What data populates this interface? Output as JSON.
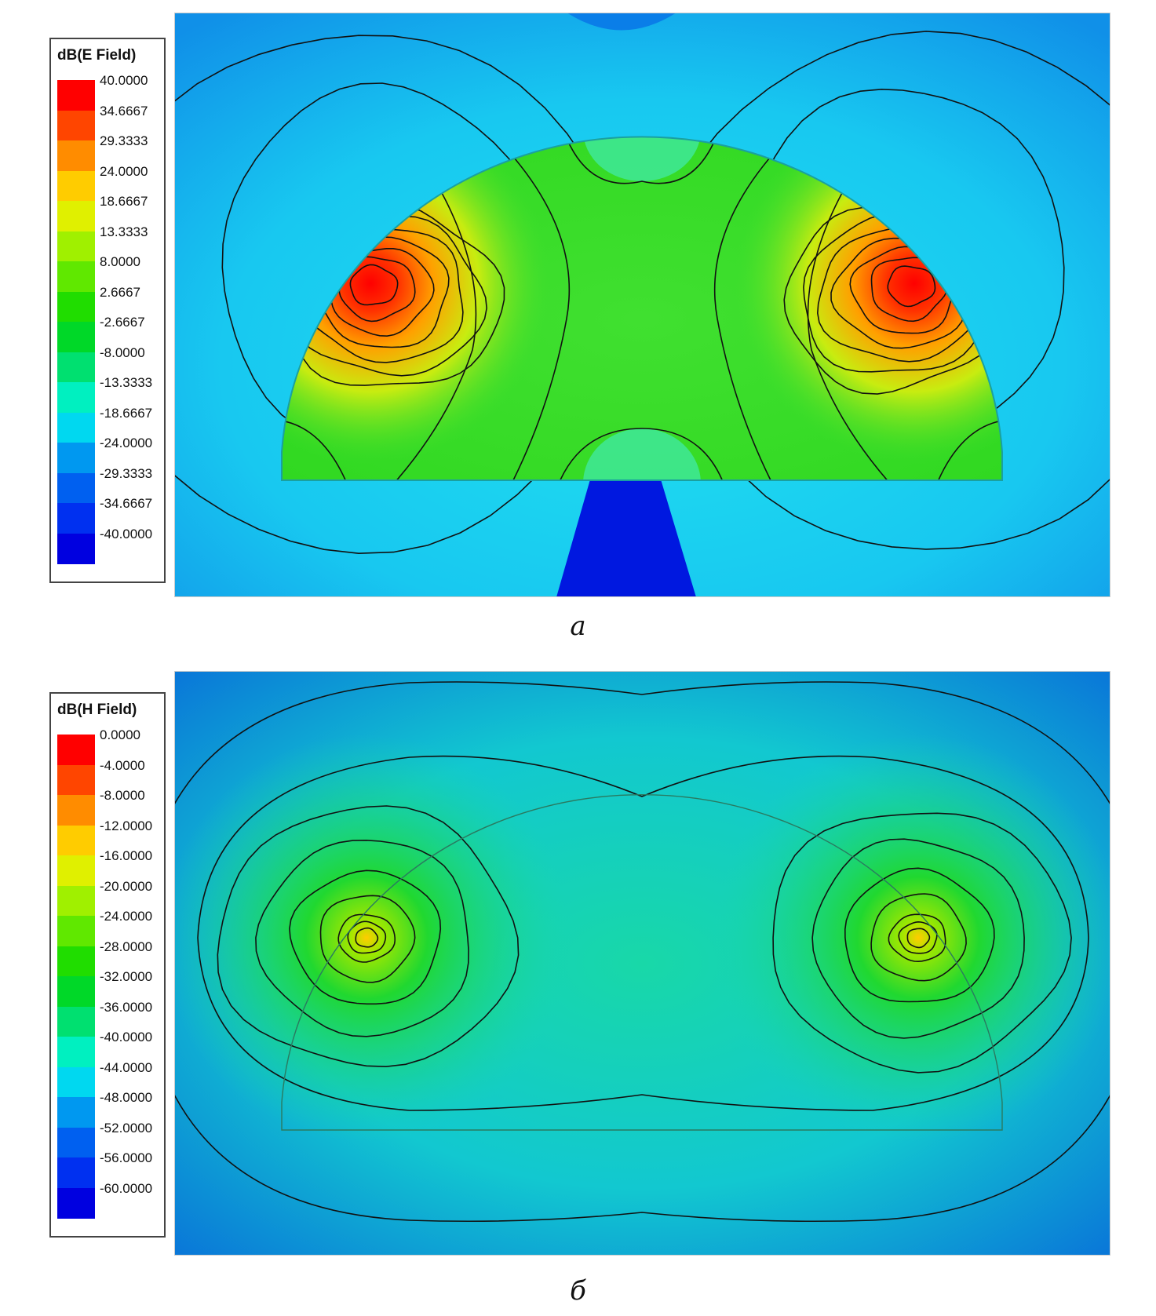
{
  "chart_data": [
    {
      "type": "heatmap",
      "panel_label": "а",
      "colorbar": {
        "title": "dB(E Field)",
        "ticks": [
          "40.0000",
          "34.6667",
          "29.3333",
          "24.0000",
          "18.6667",
          "13.3333",
          "8.0000",
          "2.6667",
          "-2.6667",
          "-8.0000",
          "-13.3333",
          "-18.6667",
          "-24.0000",
          "-29.3333",
          "-34.6667",
          "-40.0000"
        ],
        "range": [
          -40,
          40
        ],
        "colors": [
          "#ff0000",
          "#ff4500",
          "#ff8c00",
          "#ffcc00",
          "#e0f000",
          "#a0f000",
          "#60e800",
          "#20dd00",
          "#00d828",
          "#00e070",
          "#00f0c0",
          "#00d8f0",
          "#0098f0",
          "#0060f0",
          "#0030f0",
          "#0000e0"
        ]
      },
      "field": {
        "hotspots": [
          {
            "x": -0.58,
            "y": 0.7,
            "value": 40
          },
          {
            "x": 0.58,
            "y": 0.7,
            "value": 40
          }
        ],
        "dome_fill_value": 2.6667,
        "background_value": -21,
        "feed_value": -40
      }
    },
    {
      "type": "heatmap",
      "panel_label": "б",
      "colorbar": {
        "title": "dB(H Field)",
        "ticks": [
          "0.0000",
          "-4.0000",
          "-8.0000",
          "-12.0000",
          "-16.0000",
          "-20.0000",
          "-24.0000",
          "-28.0000",
          "-32.0000",
          "-36.0000",
          "-40.0000",
          "-44.0000",
          "-48.0000",
          "-52.0000",
          "-56.0000",
          "-60.0000"
        ],
        "range": [
          -60,
          0
        ],
        "colors": [
          "#ff0000",
          "#ff4500",
          "#ff8c00",
          "#ffcc00",
          "#e0f000",
          "#a0f000",
          "#60e800",
          "#20dd00",
          "#00d828",
          "#00e070",
          "#00f0c0",
          "#00d8f0",
          "#0098f0",
          "#0060f0",
          "#0030f0",
          "#0000e0"
        ]
      },
      "field": {
        "hotspots": [
          {
            "x": -0.58,
            "y": 0.7,
            "value": -12
          },
          {
            "x": 0.58,
            "y": 0.7,
            "value": -12
          }
        ],
        "center_value": -38,
        "edge_value": -52
      }
    }
  ]
}
